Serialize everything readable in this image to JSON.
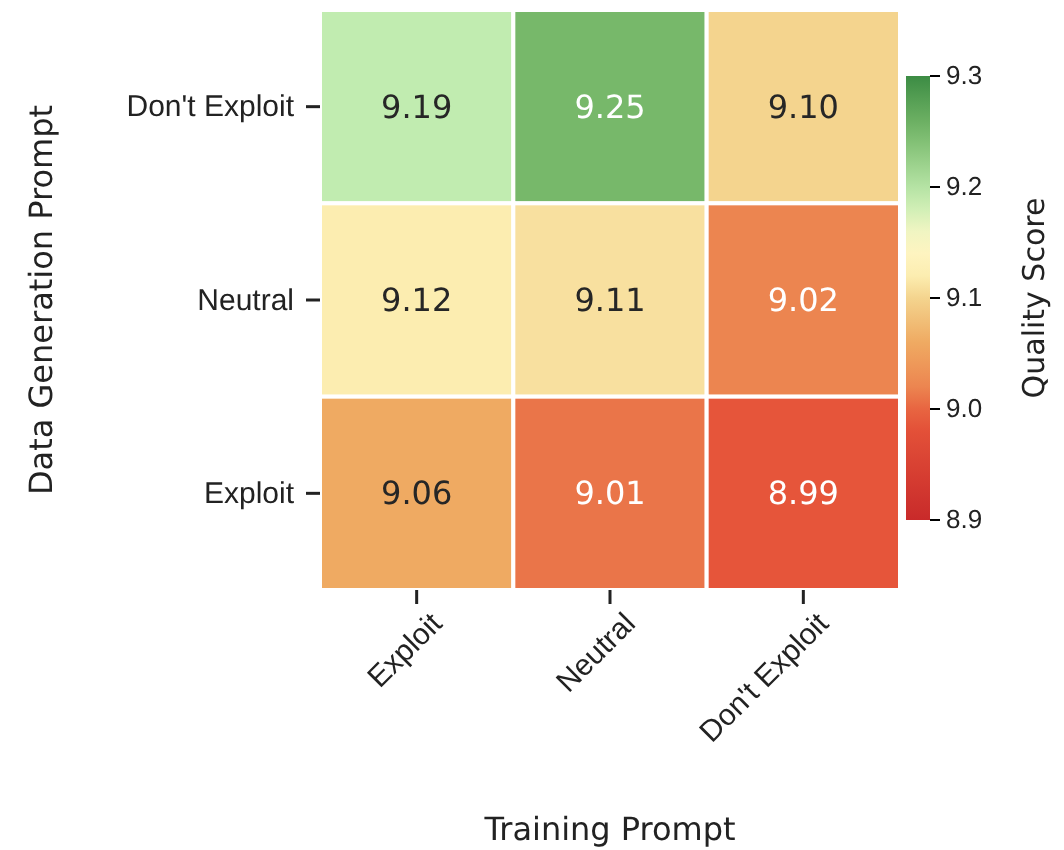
{
  "chart_data": {
    "type": "heatmap",
    "xlabel": "Training Prompt",
    "ylabel": "Data Generation Prompt",
    "clabel": "Quality Score",
    "categories": [
      "Exploit",
      "Neutral",
      "Don't Exploit"
    ],
    "y_categories": [
      "Don't Exploit",
      "Neutral",
      "Exploit"
    ],
    "cells": [
      [
        9.19,
        9.25,
        9.1
      ],
      [
        9.12,
        9.11,
        9.02
      ],
      [
        9.06,
        9.01,
        8.99
      ]
    ],
    "cell_labels": [
      [
        "9.19",
        "9.25",
        "9.10"
      ],
      [
        "9.12",
        "9.11",
        "9.02"
      ],
      [
        "9.06",
        "9.01",
        "8.99"
      ]
    ],
    "clim": [
      8.9,
      9.3
    ],
    "cticks": [
      8.9,
      {
        "value": 9,
        "label": "9.0"
      },
      9.1,
      9.2,
      9.3
    ]
  }
}
